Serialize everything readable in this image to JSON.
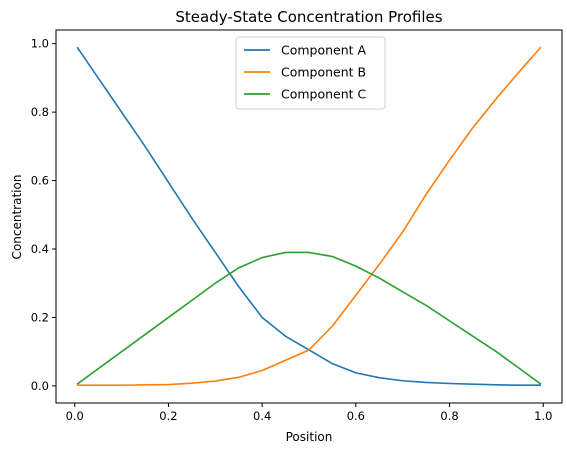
{
  "chart_data": {
    "type": "line",
    "title": "Steady-State Concentration Profiles",
    "xlabel": "Position",
    "ylabel": "Concentration",
    "xlim": [
      -0.04,
      1.04
    ],
    "ylim": [
      -0.05,
      1.04
    ],
    "x_ticks": [
      0.0,
      0.2,
      0.4,
      0.6,
      0.8,
      1.0
    ],
    "x_tick_labels": [
      "0.0",
      "0.2",
      "0.4",
      "0.6",
      "0.8",
      "1.0"
    ],
    "y_ticks": [
      0.0,
      0.2,
      0.4,
      0.6,
      0.8,
      1.0
    ],
    "y_tick_labels": [
      "0.0",
      "0.2",
      "0.4",
      "0.6",
      "0.8",
      "1.0"
    ],
    "grid": false,
    "legend_position": "top-center",
    "x": [
      0.005,
      0.05,
      0.1,
      0.15,
      0.2,
      0.25,
      0.3,
      0.35,
      0.4,
      0.45,
      0.5,
      0.55,
      0.6,
      0.65,
      0.7,
      0.75,
      0.8,
      0.85,
      0.9,
      0.95,
      0.995
    ],
    "series": [
      {
        "name": "Component A",
        "color": "#1f77b4",
        "values": [
          0.99,
          0.9,
          0.8,
          0.7,
          0.595,
          0.49,
          0.39,
          0.29,
          0.2,
          0.145,
          0.105,
          0.065,
          0.038,
          0.024,
          0.015,
          0.01,
          0.007,
          0.005,
          0.003,
          0.002,
          0.002
        ]
      },
      {
        "name": "Component B",
        "color": "#ff7f0e",
        "values": [
          0.002,
          0.002,
          0.002,
          0.003,
          0.004,
          0.008,
          0.014,
          0.025,
          0.045,
          0.075,
          0.105,
          0.175,
          0.265,
          0.355,
          0.45,
          0.56,
          0.66,
          0.755,
          0.84,
          0.92,
          0.99
        ]
      },
      {
        "name": "Component C",
        "color": "#2ca02c",
        "values": [
          0.005,
          0.05,
          0.1,
          0.15,
          0.2,
          0.25,
          0.3,
          0.345,
          0.375,
          0.39,
          0.39,
          0.378,
          0.35,
          0.315,
          0.275,
          0.235,
          0.19,
          0.145,
          0.1,
          0.05,
          0.005
        ]
      }
    ]
  }
}
